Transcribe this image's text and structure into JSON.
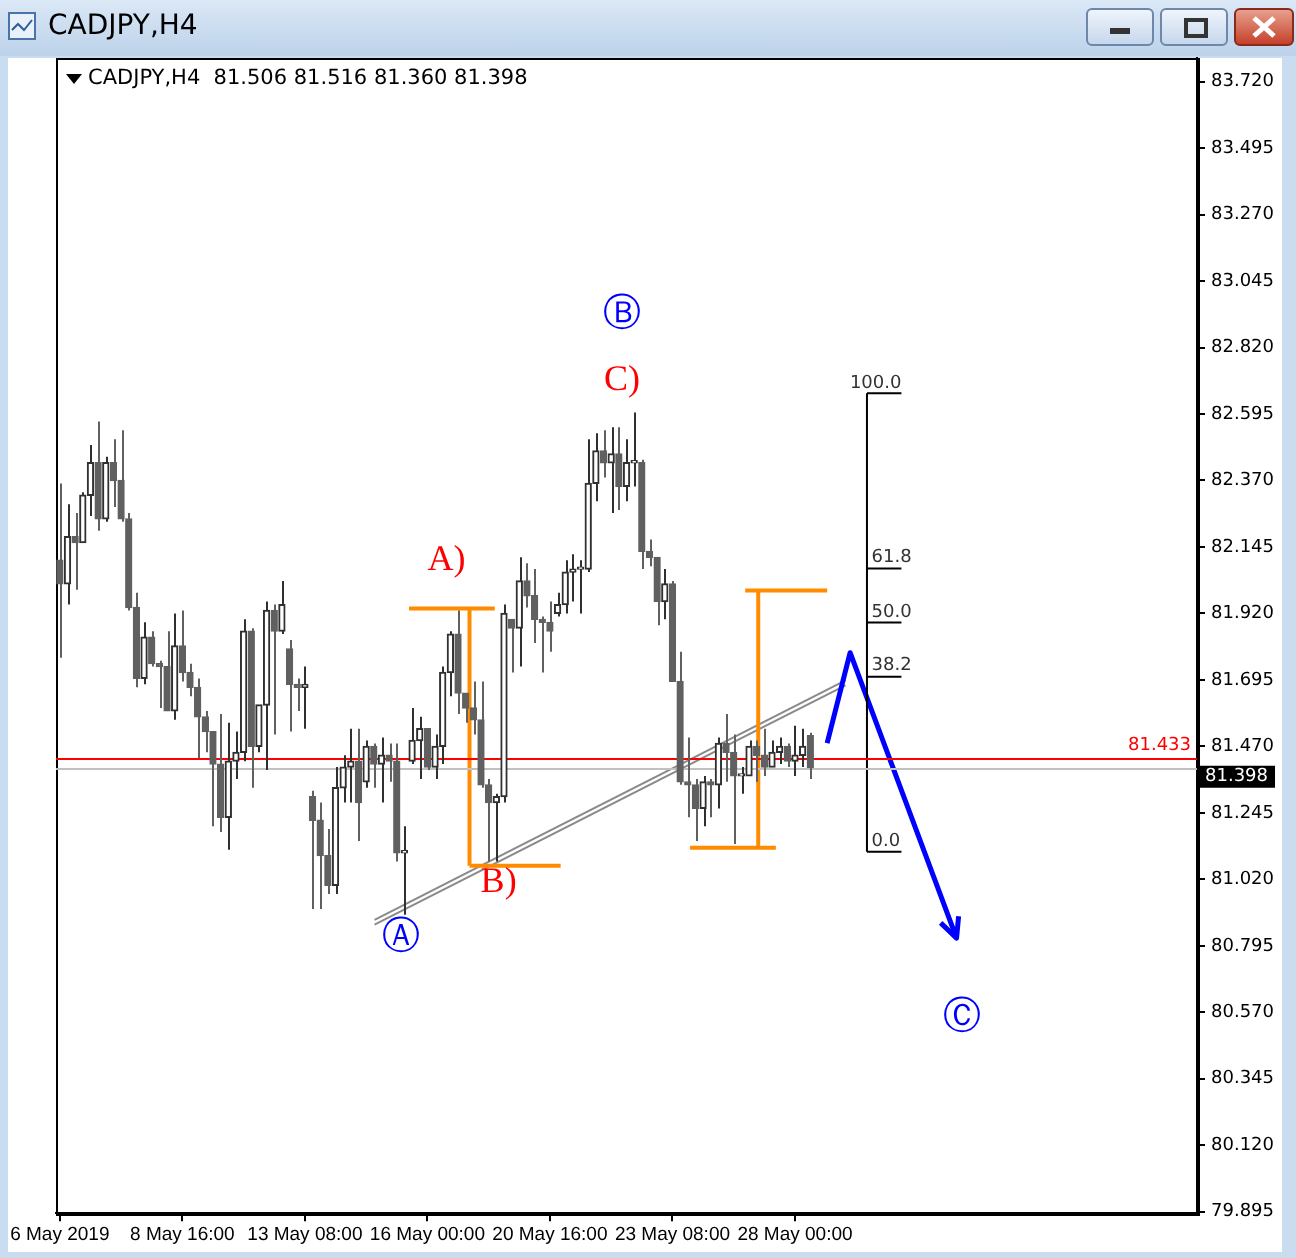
{
  "chart_data": {
    "type": "candlestick",
    "title": "CADJPY,H4",
    "subtitle": "CADJPY,H4  81.506 81.516 81.360 81.398",
    "categories": [
      "6 May 2019",
      null,
      null,
      null,
      null,
      null,
      null,
      null,
      null,
      null,
      null,
      null,
      null,
      null,
      null,
      null,
      "8 May 16:00",
      null,
      null,
      null,
      null,
      null,
      null,
      null,
      null,
      null,
      null,
      null,
      null,
      null,
      null,
      null,
      "13 May 08:00",
      null,
      null,
      null,
      null,
      null,
      null,
      null,
      null,
      null,
      null,
      null,
      null,
      null,
      null,
      null,
      "16 May 00:00",
      null,
      null,
      null,
      null,
      null,
      null,
      null,
      null,
      null,
      null,
      null,
      null,
      null,
      null,
      null,
      "20 May 16:00",
      null,
      null,
      null,
      null,
      null,
      null,
      null,
      null,
      null,
      null,
      null,
      null,
      null,
      null,
      null,
      "23 May 08:00",
      null,
      null,
      null,
      null,
      null,
      null,
      null,
      null,
      null,
      null,
      null,
      null,
      null,
      null,
      null,
      "28 May 00:00",
      null,
      null,
      null,
      null,
      null,
      null,
      null,
      null,
      null,
      null,
      null,
      null,
      null,
      null,
      null,
      null,
      null,
      null,
      null,
      null,
      null,
      null,
      null,
      null,
      null,
      null,
      null,
      null,
      null,
      null,
      null,
      null,
      null,
      null,
      null,
      null,
      null,
      null,
      null,
      null,
      null,
      null,
      null,
      null,
      null,
      null,
      null,
      null,
      null,
      null,
      null,
      null
    ],
    "ohlc": [
      [
        82.1,
        82.36,
        81.77,
        82.02
      ],
      [
        82.02,
        82.29,
        81.95,
        82.18
      ],
      [
        82.18,
        82.26,
        82.0,
        82.16
      ],
      [
        82.16,
        82.33,
        82.16,
        82.32
      ],
      [
        82.32,
        82.49,
        82.25,
        82.43
      ],
      [
        82.43,
        82.57,
        82.2,
        82.24
      ],
      [
        82.24,
        82.45,
        82.23,
        82.43
      ],
      [
        82.43,
        82.51,
        82.28,
        82.37
      ],
      [
        82.37,
        82.54,
        82.23,
        82.24
      ],
      [
        82.24,
        82.26,
        81.93,
        81.94
      ],
      [
        81.94,
        81.99,
        81.67,
        81.7
      ],
      [
        81.7,
        81.89,
        81.68,
        81.84
      ],
      [
        81.84,
        81.86,
        81.74,
        81.75
      ],
      [
        81.75,
        81.76,
        81.6,
        81.74
      ],
      [
        81.74,
        81.86,
        81.59,
        81.59
      ],
      [
        81.59,
        81.92,
        81.56,
        81.81
      ],
      [
        81.81,
        81.93,
        81.69,
        81.72
      ],
      [
        81.72,
        81.75,
        81.64,
        81.67
      ],
      [
        81.67,
        81.7,
        81.43,
        81.57
      ],
      [
        81.57,
        81.59,
        81.45,
        81.52
      ],
      [
        81.52,
        81.52,
        81.2,
        81.41
      ],
      [
        81.41,
        81.58,
        81.18,
        81.23
      ],
      [
        81.23,
        81.55,
        81.12,
        81.42
      ],
      [
        81.42,
        81.52,
        81.36,
        81.45
      ],
      [
        81.45,
        81.9,
        81.42,
        81.86
      ],
      [
        81.86,
        81.87,
        81.33,
        81.47
      ],
      [
        81.47,
        81.61,
        81.45,
        81.61
      ],
      [
        81.61,
        81.96,
        81.39,
        81.93
      ],
      [
        81.93,
        81.95,
        81.51,
        81.86
      ],
      [
        81.86,
        82.03,
        81.85,
        81.95
      ],
      [
        81.8,
        81.83,
        81.52,
        81.68
      ],
      [
        81.68,
        81.7,
        81.59,
        81.67
      ],
      [
        81.67,
        81.74,
        81.53,
        81.68
      ],
      [
        81.3,
        81.32,
        80.92,
        81.22
      ],
      [
        81.22,
        81.28,
        80.92,
        81.1
      ],
      [
        81.1,
        81.19,
        80.97,
        81.0
      ],
      [
        81.0,
        81.4,
        80.97,
        81.33
      ],
      [
        81.33,
        81.44,
        81.28,
        81.4
      ],
      [
        81.4,
        81.53,
        81.28,
        81.42
      ],
      [
        81.42,
        81.53,
        81.15,
        81.28
      ],
      [
        81.35,
        81.49,
        81.33,
        81.47
      ],
      [
        81.47,
        81.48,
        81.33,
        81.41
      ],
      [
        81.41,
        81.5,
        81.28,
        81.44
      ],
      [
        81.44,
        81.48,
        81.35,
        81.42
      ],
      [
        81.42,
        81.48,
        81.08,
        81.11
      ],
      [
        81.11,
        81.2,
        80.9,
        81.11
      ],
      [
        81.42,
        81.6,
        81.41,
        81.49
      ],
      [
        81.49,
        81.57,
        81.36,
        81.53
      ],
      [
        81.53,
        81.53,
        81.39,
        81.4
      ],
      [
        81.4,
        81.51,
        81.36,
        81.47
      ],
      [
        81.47,
        81.74,
        81.41,
        81.72
      ],
      [
        81.72,
        81.86,
        81.64,
        81.85
      ],
      [
        81.85,
        81.93,
        81.58,
        81.65
      ],
      [
        81.65,
        81.65,
        81.55,
        81.6
      ],
      [
        81.6,
        81.69,
        81.51,
        81.56
      ],
      [
        81.56,
        81.69,
        81.33,
        81.34
      ],
      [
        81.34,
        81.36,
        81.08,
        81.28
      ],
      [
        81.28,
        81.31,
        81.08,
        81.3
      ],
      [
        81.3,
        81.95,
        81.28,
        81.92
      ],
      [
        81.9,
        81.9,
        81.72,
        81.87
      ],
      [
        81.87,
        82.11,
        81.74,
        82.03
      ],
      [
        82.03,
        82.09,
        81.94,
        81.98
      ],
      [
        81.98,
        82.07,
        81.82,
        81.9
      ],
      [
        81.9,
        81.91,
        81.72,
        81.89
      ],
      [
        81.89,
        81.96,
        81.79,
        81.86
      ],
      [
        81.92,
        81.99,
        81.91,
        81.95
      ],
      [
        81.95,
        82.1,
        81.92,
        82.06
      ],
      [
        82.06,
        82.12,
        81.96,
        82.07
      ],
      [
        82.07,
        82.1,
        81.92,
        82.07
      ],
      [
        82.07,
        82.51,
        82.06,
        82.36
      ],
      [
        82.36,
        82.53,
        82.3,
        82.47
      ],
      [
        82.47,
        82.54,
        82.38,
        82.43
      ],
      [
        82.43,
        82.55,
        82.26,
        82.46
      ],
      [
        82.46,
        82.55,
        82.27,
        82.35
      ],
      [
        82.35,
        82.51,
        82.3,
        82.43
      ],
      [
        82.43,
        82.6,
        82.35,
        82.43
      ],
      [
        82.43,
        82.44,
        82.07,
        82.13
      ],
      [
        82.13,
        82.17,
        82.08,
        82.11
      ],
      [
        82.11,
        82.11,
        81.88,
        81.96
      ],
      [
        81.96,
        82.07,
        81.9,
        82.02
      ],
      [
        82.02,
        82.03,
        81.69,
        81.69
      ],
      [
        81.69,
        81.79,
        81.34,
        81.35
      ],
      [
        81.35,
        81.5,
        81.23,
        81.34
      ],
      [
        81.34,
        81.36,
        81.15,
        81.26
      ],
      [
        81.26,
        81.37,
        81.2,
        81.35
      ],
      [
        81.35,
        81.36,
        81.23,
        81.34
      ],
      [
        81.34,
        81.5,
        81.26,
        81.48
      ],
      [
        81.48,
        81.58,
        81.35,
        81.45
      ],
      [
        81.45,
        81.51,
        81.14,
        81.37
      ],
      [
        81.37,
        81.4,
        81.31,
        81.37
      ],
      [
        81.37,
        81.49,
        81.37,
        81.47
      ],
      [
        81.47,
        81.49,
        81.35,
        81.44
      ],
      [
        81.44,
        81.53,
        81.37,
        81.4
      ],
      [
        81.4,
        81.49,
        81.4,
        81.45
      ],
      [
        81.45,
        81.5,
        81.41,
        81.47
      ],
      [
        81.47,
        81.48,
        81.4,
        81.42
      ],
      [
        81.42,
        81.54,
        81.37,
        81.44
      ],
      [
        81.44,
        81.53,
        81.4,
        81.47
      ],
      [
        81.506,
        81.516,
        81.36,
        81.398
      ],
      null,
      null,
      null,
      null,
      null,
      null,
      null,
      null,
      null,
      null,
      null,
      null,
      null,
      null,
      null,
      null,
      null,
      null,
      null,
      null,
      null,
      null,
      null,
      null,
      null,
      null,
      null,
      null,
      null,
      null,
      null,
      null,
      null,
      null,
      null,
      null,
      null,
      null,
      null,
      null,
      null,
      null,
      null,
      null,
      null,
      null,
      null,
      null,
      null,
      null
    ],
    "colors": [
      "#606060",
      "#303030",
      "#606060",
      "#303030",
      "#303030",
      "#606060",
      "#303030",
      "#606060",
      "#606060",
      "#606060",
      "#606060",
      "#303030",
      "#606060",
      "#606060",
      "#606060",
      "#303030",
      "#606060",
      "#606060",
      "#606060",
      "#606060",
      "#606060",
      "#606060",
      "#303030",
      "#303030",
      "#303030",
      "#606060",
      "#303030",
      "#303030",
      "#606060",
      "#303030",
      "#606060",
      "#606060",
      "#303030",
      "#606060",
      "#606060",
      "#606060",
      "#303030",
      "#303030",
      "#303030",
      "#606060",
      "#303030",
      "#606060",
      "#303030",
      "#606060",
      "#606060",
      "#303030",
      "#303030",
      "#303030",
      "#606060",
      "#303030",
      "#303030",
      "#303030",
      "#606060",
      "#606060",
      "#606060",
      "#606060",
      "#606060",
      "#303030",
      "#303030",
      "#606060",
      "#303030",
      "#606060",
      "#606060",
      "#606060",
      "#606060",
      "#303030",
      "#303030",
      "#303030",
      "#303030",
      "#303030",
      "#303030",
      "#606060",
      "#303030",
      "#606060",
      "#303030",
      "#303030",
      "#606060",
      "#606060",
      "#606060",
      "#303030",
      "#606060",
      "#606060",
      "#606060",
      "#606060",
      "#303030",
      "#606060",
      "#303030",
      "#606060",
      "#606060",
      "#303030",
      "#303030",
      "#606060",
      "#606060",
      "#303030",
      "#303030",
      "#606060",
      "#303030",
      "#303030",
      "#606060",
      null,
      null,
      null,
      null,
      null,
      null,
      null,
      null,
      null,
      null,
      null,
      null,
      null,
      null,
      null,
      null,
      null,
      null,
      null,
      null,
      null,
      null,
      null,
      null,
      null,
      null,
      null,
      null,
      null,
      null,
      null,
      null,
      null,
      null,
      null,
      null,
      null,
      null,
      null,
      null,
      null,
      null,
      null,
      null,
      null,
      null,
      null,
      null,
      null,
      null
    ],
    "ylim": [
      79.89,
      83.8
    ],
    "yticks": [
      {
        "value": 83.72,
        "label": "83.720"
      },
      83.495,
      {
        "value": 83.27,
        "label": "83.270"
      },
      83.045,
      {
        "value": 82.82,
        "label": "82.820"
      },
      82.595,
      {
        "value": 82.37,
        "label": "82.370"
      },
      82.145,
      {
        "value": 81.92,
        "label": "81.920"
      },
      81.695,
      {
        "value": 81.47,
        "label": "81.470"
      },
      81.245,
      {
        "value": 81.02,
        "label": "81.020"
      },
      80.795,
      {
        "value": 80.57,
        "label": "80.570"
      },
      80.345,
      {
        "value": 80.12,
        "label": "80.120"
      },
      79.895
    ],
    "ref_lines": [
      {
        "axis": "y",
        "value": 81.433,
        "label": "81.433",
        "color": "#ff0000"
      },
      {
        "axis": "y",
        "value": 81.398,
        "label": "81.398",
        "color": "#c0c0c0"
      }
    ],
    "annotations": [
      "A)",
      "B)",
      "C)",
      "Ⓐ",
      "Ⓑ",
      "Ⓒ",
      "100.0",
      "61.8",
      "50.0",
      "38.2",
      "0.0"
    ],
    "grid": false,
    "legend": false
  }
}
